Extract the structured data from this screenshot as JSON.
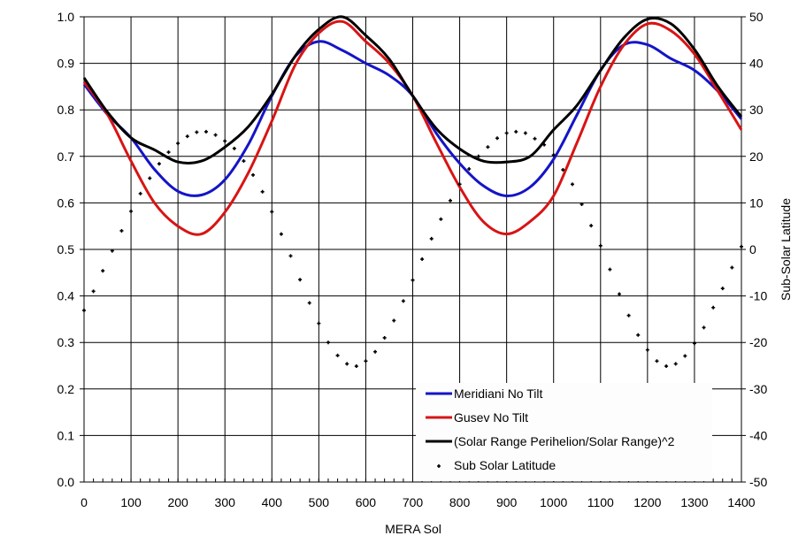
{
  "chart_data": {
    "type": "line",
    "title": "",
    "xlabel": "MERA Sol",
    "ylabel": "",
    "y2label": "Sub-Solar Latitude",
    "xlim": [
      0,
      1400
    ],
    "ylim": [
      0.0,
      1.0
    ],
    "y2lim": [
      -50,
      50
    ],
    "grid": true,
    "legend_position": "bottom-right inside",
    "x_ticks": [
      "0",
      "100",
      "200",
      "300",
      "400",
      "500",
      "600",
      "700",
      "800",
      "900",
      "1000",
      "1100",
      "1200",
      "1300",
      "1400"
    ],
    "y_ticks": [
      "0.0",
      "0.1",
      "0.2",
      "0.3",
      "0.4",
      "0.5",
      "0.6",
      "0.7",
      "0.8",
      "0.9",
      "1.0"
    ],
    "y2_ticks": [
      "-50",
      "-40",
      "-30",
      "-20",
      "-10",
      "0",
      "10",
      "20",
      "30",
      "40",
      "50"
    ],
    "x": [
      0,
      50,
      100,
      150,
      200,
      250,
      300,
      350,
      400,
      450,
      500,
      550,
      600,
      650,
      700,
      750,
      800,
      850,
      900,
      950,
      1000,
      1050,
      1100,
      1150,
      1200,
      1250,
      1300,
      1350,
      1400
    ],
    "series": [
      {
        "name": "Meridiani No Tilt",
        "axis": "left",
        "style": "line",
        "color": "#1414c8",
        "values": [
          0.855,
          0.79,
          0.74,
          0.672,
          0.625,
          0.617,
          0.65,
          0.726,
          0.83,
          0.915,
          0.947,
          0.928,
          0.9,
          0.874,
          0.83,
          0.75,
          0.685,
          0.637,
          0.615,
          0.634,
          0.694,
          0.79,
          0.885,
          0.94,
          0.94,
          0.91,
          0.885,
          0.84,
          0.78
        ]
      },
      {
        "name": "Gusev No Tilt",
        "axis": "left",
        "style": "line",
        "color": "#d81414",
        "values": [
          0.86,
          0.79,
          0.69,
          0.6,
          0.55,
          0.533,
          0.58,
          0.665,
          0.776,
          0.897,
          0.965,
          0.99,
          0.947,
          0.9,
          0.83,
          0.73,
          0.634,
          0.56,
          0.533,
          0.56,
          0.615,
          0.73,
          0.85,
          0.94,
          0.985,
          0.97,
          0.92,
          0.84,
          0.757
        ]
      },
      {
        "name": "(Solar Range Perihelion/Solar Range)^2",
        "axis": "left",
        "style": "line",
        "color": "#000000",
        "values": [
          0.869,
          0.795,
          0.74,
          0.714,
          0.688,
          0.69,
          0.72,
          0.764,
          0.833,
          0.916,
          0.973,
          1.0,
          0.96,
          0.909,
          0.83,
          0.76,
          0.716,
          0.69,
          0.688,
          0.7,
          0.757,
          0.81,
          0.885,
          0.955,
          0.995,
          0.985,
          0.93,
          0.85,
          0.785
        ]
      },
      {
        "name": "Sub Solar Latitude",
        "axis": "right",
        "style": "markers",
        "color": "#000000",
        "x": [
          0,
          20,
          40,
          60,
          80,
          100,
          120,
          140,
          160,
          180,
          200,
          220,
          240,
          260,
          280,
          300,
          320,
          340,
          360,
          380,
          400,
          420,
          440,
          460,
          480,
          500,
          520,
          540,
          560,
          580,
          600,
          620,
          640,
          660,
          680,
          700,
          720,
          740,
          760,
          780,
          800,
          820,
          840,
          860,
          880,
          900,
          920,
          940,
          960,
          980,
          1000,
          1020,
          1040,
          1060,
          1080,
          1100,
          1120,
          1140,
          1160,
          1180,
          1200,
          1220,
          1240,
          1260,
          1280,
          1300,
          1320,
          1340,
          1360,
          1380,
          1400
        ],
        "values": [
          -13.1,
          -9.0,
          -4.6,
          -0.3,
          4.0,
          8.2,
          12.0,
          15.3,
          18.4,
          20.9,
          22.8,
          24.3,
          25.2,
          25.3,
          24.6,
          23.3,
          21.7,
          19.0,
          16.0,
          12.4,
          8.1,
          3.3,
          -1.4,
          -6.5,
          -11.5,
          -15.9,
          -20.0,
          -22.8,
          -24.6,
          -25.1,
          -24.0,
          -22.0,
          -19.0,
          -15.3,
          -11.1,
          -6.6,
          -2.1,
          2.3,
          6.5,
          10.5,
          14.0,
          17.3,
          20.0,
          22.0,
          23.9,
          25.0,
          25.3,
          25.0,
          23.8,
          22.5,
          20.3,
          17.1,
          14.0,
          9.7,
          5.1,
          0.8,
          -4.3,
          -9.6,
          -14.2,
          -18.4,
          -21.6,
          -24.0,
          -25.1,
          -24.6,
          -22.9,
          -20.2,
          -16.8,
          -12.5,
          -8.4,
          -3.9,
          0.6
        ]
      }
    ]
  }
}
